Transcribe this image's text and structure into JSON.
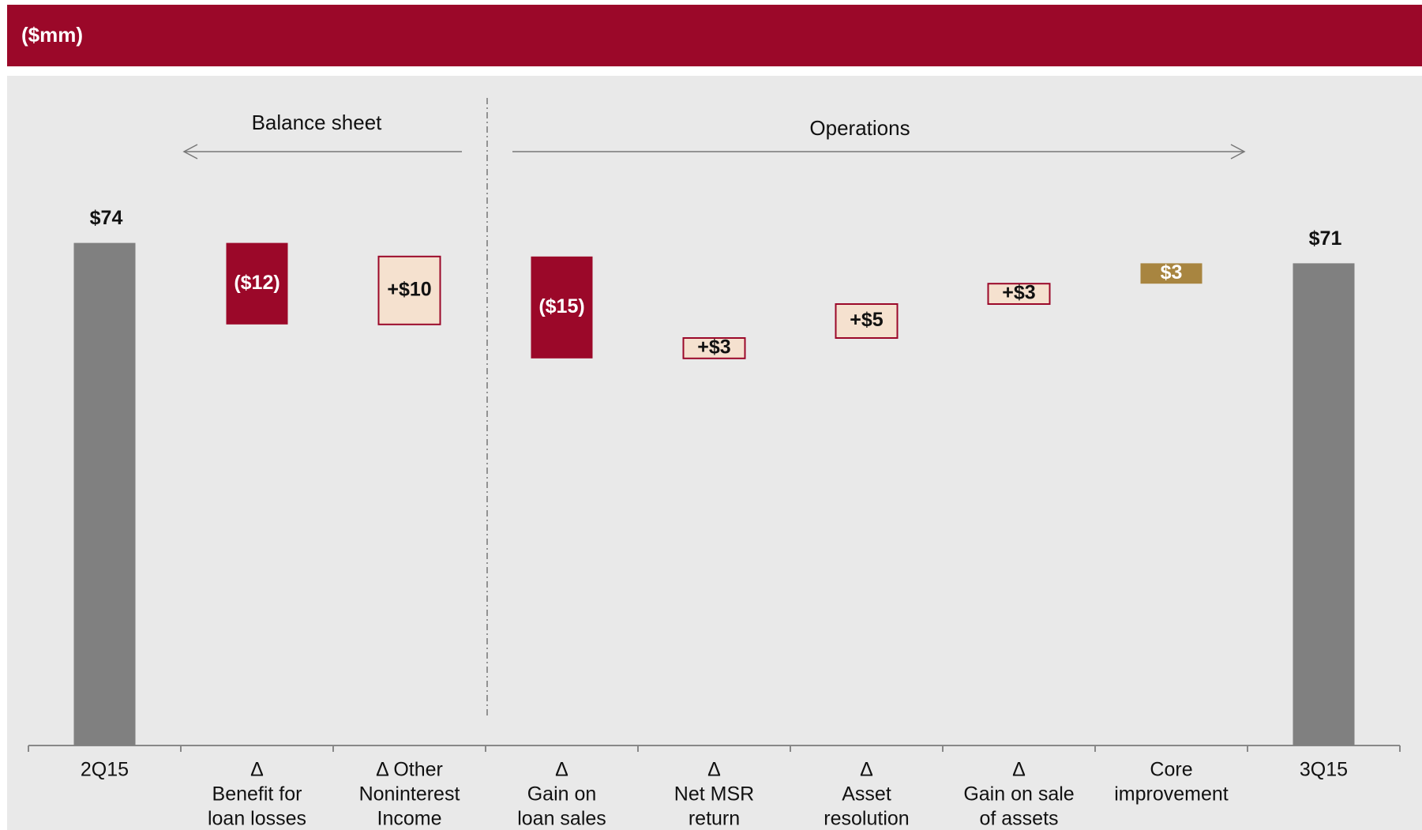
{
  "chart_data": {
    "type": "waterfall",
    "title": "($mm)",
    "annotations": [
      "Balance sheet",
      "Operations"
    ],
    "categories": [
      [
        "2Q15"
      ],
      [
        "Δ",
        "Benefit for",
        "loan losses"
      ],
      [
        "Δ Other",
        "Noninterest",
        "Income"
      ],
      [
        "Δ",
        "Gain on",
        "loan sales"
      ],
      [
        "Δ",
        "Net MSR",
        "return"
      ],
      [
        "Δ",
        "Asset",
        "resolution"
      ],
      [
        "Δ",
        "Gain on sale",
        "of assets"
      ],
      [
        "Core",
        "improvement"
      ],
      [
        "3Q15"
      ]
    ],
    "values": [
      74,
      -12,
      10,
      -15,
      3,
      5,
      3,
      3,
      71
    ],
    "value_labels": [
      "$74",
      "($12)",
      "+$10",
      "($15)",
      "+$3",
      "+$5",
      "+$3",
      "$3",
      "$71"
    ],
    "measure": [
      "absolute",
      "relative",
      "relative",
      "relative",
      "relative",
      "relative",
      "relative",
      "relative",
      "total"
    ],
    "colors": [
      "#808080",
      "#9b0829",
      "#f5e1cf",
      "#9b0829",
      "#f5e1cf",
      "#f5e1cf",
      "#f5e1cf",
      "#a88540",
      "#808080"
    ],
    "ylim": [
      0,
      80
    ]
  }
}
